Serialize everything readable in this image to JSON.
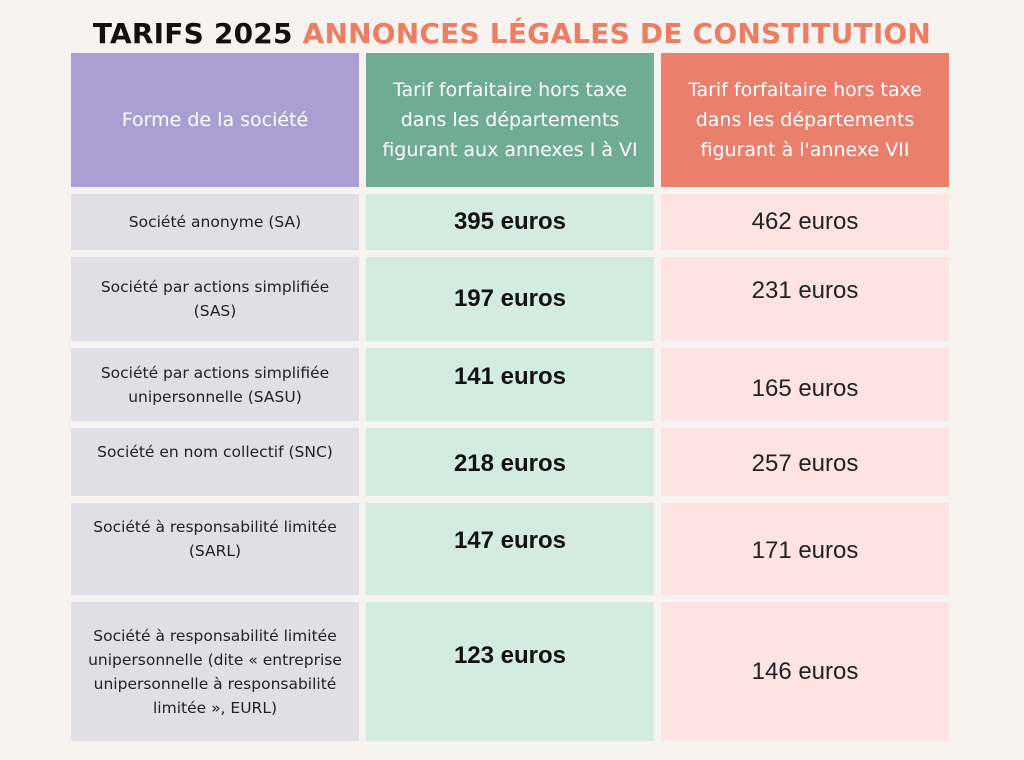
{
  "title": {
    "part1": "TARIFS 2025",
    "part2": "ANNONCES LÉGALES DE CONSTITUTION"
  },
  "colors": {
    "title_dark": "#111111",
    "title_accent": "#ec7e63",
    "header_form": "#a99fd4",
    "header_annexes_1_6": "#6fab95",
    "header_annexe_7": "#ea7f6c",
    "row_form": "#e1dfe6",
    "row_annexes_1_6": "#d3ebe1",
    "row_annexe_7": "#fde4e2"
  },
  "table": {
    "headers": [
      "Forme de la société",
      "Tarif forfaitaire hors taxe dans les départements figurant aux annexes I à VI",
      "Tarif forfaitaire hors taxe dans les départements figurant à l'annexe VII"
    ],
    "rows": [
      {
        "form": "Société anonyme (SA)",
        "annexes_1_6": "395 euros",
        "annexe_7": "462 euros"
      },
      {
        "form": "Société par actions simplifiée (SAS)",
        "annexes_1_6": "197 euros",
        "annexe_7": "231 euros"
      },
      {
        "form": "Société par actions simplifiée unipersonnelle (SASU)",
        "annexes_1_6": "141 euros",
        "annexe_7": "165 euros"
      },
      {
        "form": "Société en nom collectif (SNC)",
        "annexes_1_6": "218 euros",
        "annexe_7": "257 euros"
      },
      {
        "form": "Société à responsabilité limitée (SARL)",
        "annexes_1_6": "147 euros",
        "annexe_7": "171 euros"
      },
      {
        "form": "Société à responsabilité limitée unipersonnelle (dite « entreprise unipersonnelle à responsabilité limitée », EURL)",
        "annexes_1_6": "123 euros",
        "annexe_7": "146 euros"
      }
    ]
  }
}
